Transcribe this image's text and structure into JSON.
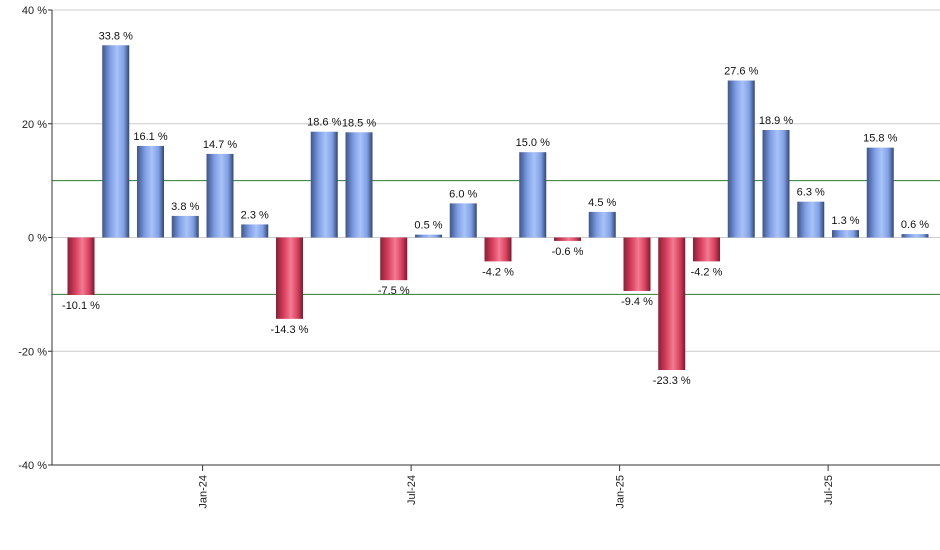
{
  "chart_data": {
    "type": "bar",
    "title": "",
    "xlabel": "",
    "ylabel": "",
    "ylim": [
      -40,
      40
    ],
    "y_ticks": [
      -40,
      -20,
      0,
      20,
      40
    ],
    "y_tick_labels": [
      "-40 %",
      "-20 %",
      "0 %",
      "20 %",
      "40 %"
    ],
    "reference_lines": [
      10,
      -10
    ],
    "x_ticks": [
      {
        "after_bar": 3,
        "label": "Jan-24"
      },
      {
        "after_bar": 9,
        "label": "Jul-24"
      },
      {
        "after_bar": 15,
        "label": "Jan-25"
      },
      {
        "after_bar": 21,
        "label": "Jul-25"
      }
    ],
    "values": [
      -10.1,
      33.8,
      16.1,
      3.8,
      14.7,
      2.3,
      -14.3,
      18.6,
      18.5,
      -7.5,
      0.5,
      6.0,
      -4.2,
      15.0,
      -0.6,
      4.5,
      -9.4,
      -23.3,
      -4.2,
      27.6,
      18.9,
      6.3,
      1.3,
      15.8,
      0.6
    ],
    "labels": [
      "-10.1 %",
      "33.8 %",
      "16.1 %",
      "3.8 %",
      "14.7 %",
      "2.3 %",
      "-14.3 %",
      "18.6 %",
      "18.5 %",
      "-7.5 %",
      "0.5 %",
      "6.0 %",
      "-4.2 %",
      "15.0 %",
      "-0.6 %",
      "4.5 %",
      "-9.4 %",
      "-23.3 %",
      "-4.2 %",
      "27.6 %",
      "18.9 %",
      "6.3 %",
      "1.3 %",
      "15.8 %",
      "0.6 %"
    ],
    "grid": true,
    "colors": {
      "positive": "#7f9fe6",
      "positive_dark": "#3a4f82",
      "negative": "#e0506c",
      "negative_dark": "#8a1f36",
      "reference_line": "#2e7d32",
      "grid": "#cccccc",
      "axis": "#333333"
    }
  }
}
